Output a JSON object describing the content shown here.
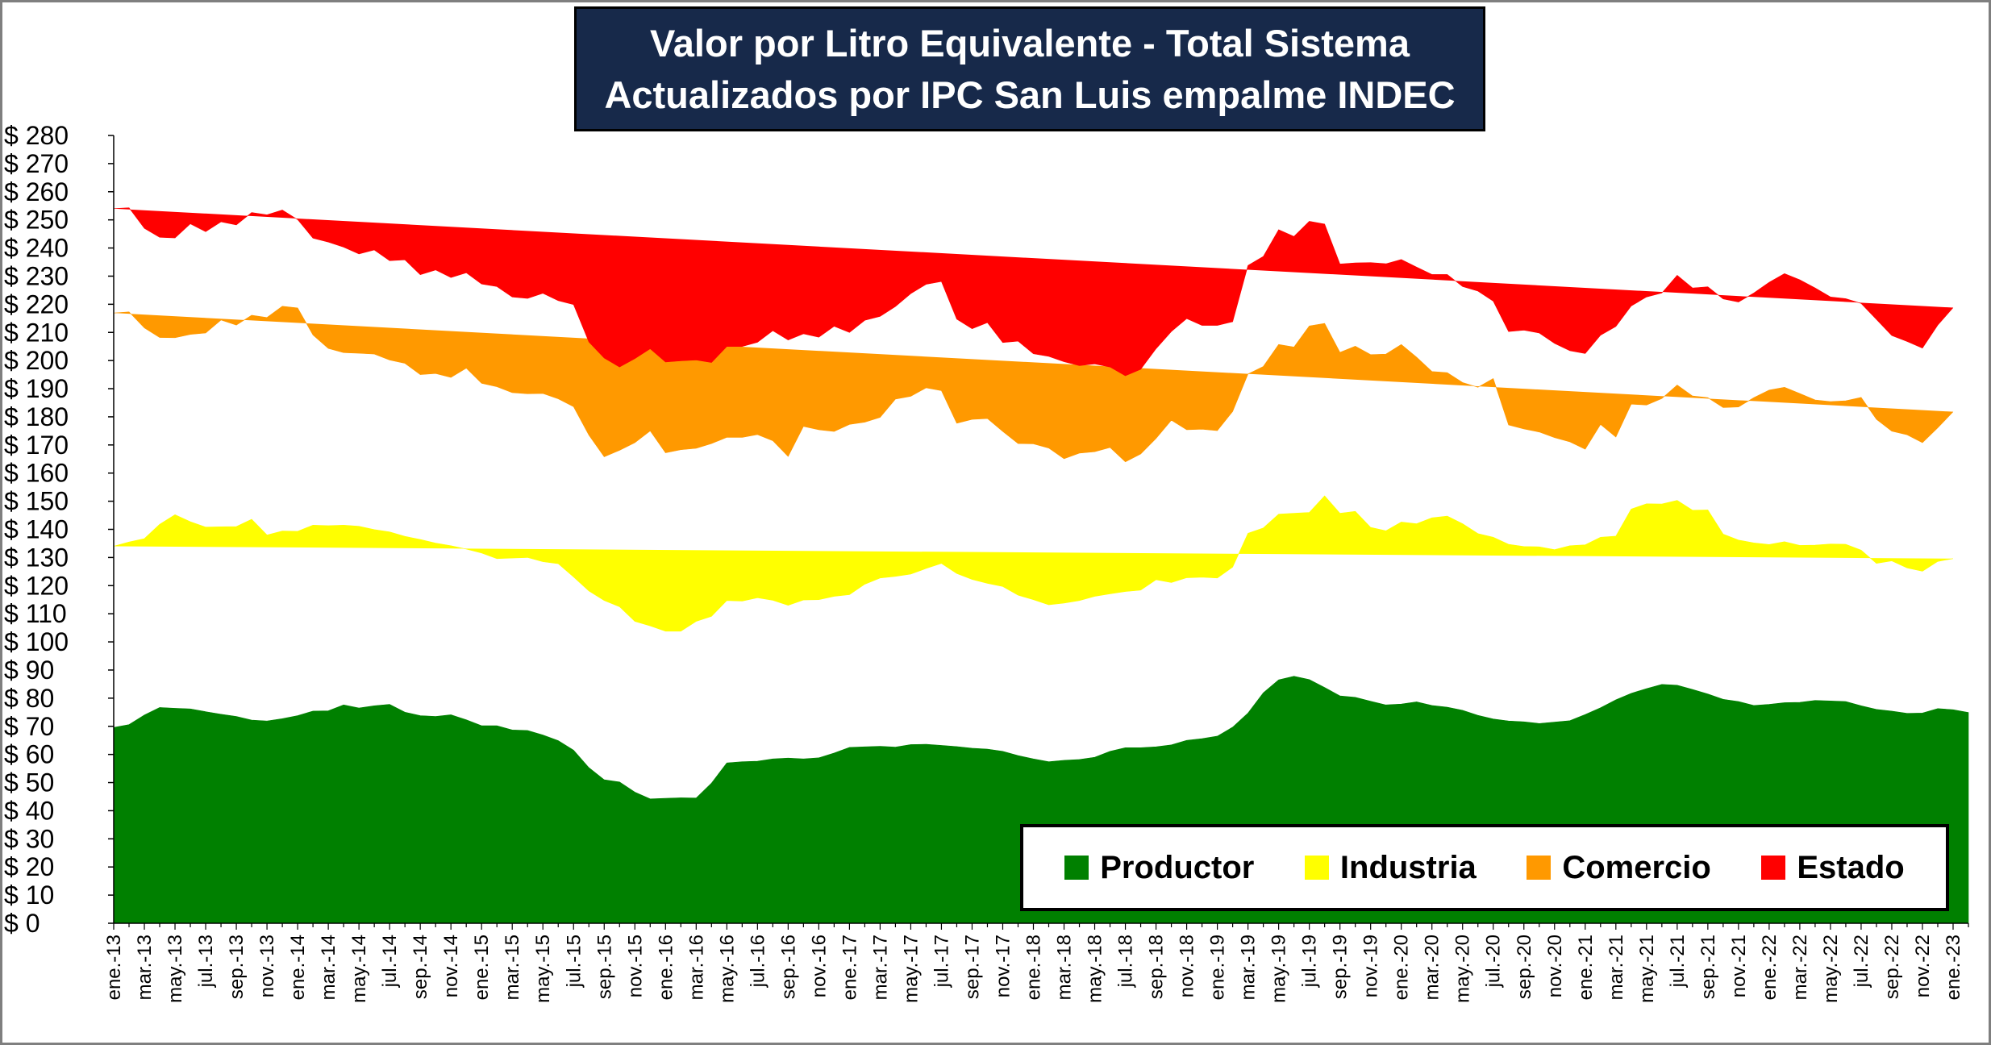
{
  "chart_data": {
    "type": "area",
    "stacked": true,
    "title": "Valor por Litro Equivalente - Total Sistema",
    "subtitle": "Actualizados por IPC San Luis empalme INDEC",
    "ylim": [
      0,
      280
    ],
    "ytick_step": 10,
    "ytick_prefix": "$ ",
    "grid": false,
    "legend_position": "bottom-right",
    "start_month": "2013-01",
    "x_tick_labels": [
      "ene.-13",
      "mar.-13",
      "may.-13",
      "jul.-13",
      "sep.-13",
      "nov.-13",
      "ene.-14",
      "mar.-14",
      "may.-14",
      "jul.-14",
      "sep.-14",
      "nov.-14",
      "ene.-15",
      "mar.-15",
      "may.-15",
      "jul.-15",
      "sep.-15",
      "nov.-15",
      "ene.-16",
      "mar.-16",
      "may.-16",
      "jul.-16",
      "sep.-16",
      "nov.-16",
      "ene.-17",
      "mar.-17",
      "may.-17",
      "jul.-17",
      "sep.-17",
      "nov.-17",
      "ene.-18",
      "mar.-18",
      "may.-18",
      "jul.-18",
      "sep.-18",
      "nov.-18",
      "ene.-19",
      "mar.-19",
      "may.-19",
      "jul.-19",
      "sep.-19",
      "nov.-19",
      "ene.-20",
      "mar.-20",
      "may.-20",
      "jul.-20",
      "sep.-20",
      "nov.-20",
      "ene.-21",
      "mar.-21",
      "may.-21",
      "jul.-21",
      "sep.-21",
      "nov.-21",
      "ene.-22",
      "mar.-22",
      "may.-22",
      "jul.-22",
      "sep.-22",
      "nov.-22",
      "ene.-23"
    ],
    "series": [
      {
        "name": "Productor",
        "color": "#008000",
        "values": [
          69.6,
          70.6,
          74.0,
          76.7,
          76.4,
          76.2,
          75.2,
          74.3,
          73.5,
          72.2,
          71.9,
          72.7,
          73.8,
          75.4,
          75.5,
          77.6,
          76.5,
          77.3,
          77.8,
          75.0,
          73.8,
          73.5,
          74.1,
          72.3,
          70.2,
          70.2,
          68.7,
          68.5,
          66.9,
          64.9,
          61.5,
          55.3,
          51.0,
          50.2,
          46.6,
          44.2,
          44.4,
          44.6,
          44.5,
          49.8,
          57.0,
          57.4,
          57.6,
          58.4,
          58.7,
          58.4,
          58.8,
          60.5,
          62.5,
          62.7,
          62.9,
          62.6,
          63.5,
          63.6,
          63.2,
          62.8,
          62.2,
          61.9,
          61.1,
          59.6,
          58.4,
          57.4,
          57.9,
          58.2,
          59.0,
          61.1,
          62.4,
          62.4,
          62.7,
          63.4,
          65.0,
          65.6,
          66.5,
          69.7,
          74.7,
          81.9,
          86.5,
          87.8,
          86.6,
          83.8,
          80.8,
          80.3,
          78.9,
          77.6,
          77.9,
          78.7,
          77.4,
          76.8,
          75.7,
          73.9,
          72.6,
          71.9,
          71.6,
          71.0,
          71.5,
          72.0,
          74.2,
          76.6,
          79.4,
          81.7,
          83.4,
          84.9,
          84.6,
          83.1,
          81.5,
          79.6,
          78.8,
          77.4,
          77.8,
          78.4,
          78.5,
          79.2,
          79.0,
          78.8,
          77.3,
          76.0,
          75.4,
          74.6,
          74.7,
          76.3,
          75.9,
          74.9
        ]
      },
      {
        "name": "Industria",
        "color": "#ffff00",
        "values": [
          64.4,
          64.9,
          62.7,
          65.1,
          68.8,
          66.5,
          65.6,
          66.6,
          67.5,
          71.4,
          66.1,
          66.7,
          65.5,
          66.1,
          65.8,
          63.9,
          64.6,
          62.6,
          61.3,
          62.5,
          62.6,
          61.6,
          60.1,
          60.7,
          61.4,
          59.4,
          61.1,
          61.5,
          61.6,
          62.9,
          61.6,
          62.8,
          63.7,
          62.3,
          60.7,
          61.5,
          59.4,
          59.2,
          62.8,
          59.3,
          57.7,
          57.1,
          58.1,
          56.4,
          54.3,
          56.5,
          56.2,
          55.7,
          54.3,
          57.8,
          59.8,
          60.7,
          60.6,
          62.5,
          64.7,
          61.5,
          60.0,
          58.9,
          58.6,
          57.0,
          56.6,
          55.8,
          55.9,
          56.5,
          57.2,
          56.0,
          55.5,
          56.0,
          59.4,
          57.7,
          57.8,
          57.4,
          56.2,
          56.9,
          63.9,
          58.6,
          58.9,
          57.9,
          59.4,
          68.1,
          64.9,
          66.1,
          61.8,
          61.9,
          64.7,
          63.3,
          66.7,
          67.9,
          66.3,
          64.6,
          64.6,
          62.8,
          62.3,
          62.8,
          61.3,
          62.2,
          60.3,
          60.6,
          58.2,
          65.5,
          65.7,
          64.1,
          65.7,
          63.7,
          65.4,
          58.7,
          57.4,
          57.8,
          56.8,
          57.2,
          55.8,
          55.2,
          55.8,
          55.9,
          55.3,
          51.9,
          53.4,
          51.7,
          50.4,
          52.3,
          53.7
        ]
      },
      {
        "name": "Comercio",
        "color": "#ff9900",
        "values": [
          82.9,
          81.8,
          74.9,
          66.4,
          62.9,
          66.6,
          69.0,
          73.5,
          71.6,
          72.5,
          77.3,
          79.9,
          79.4,
          67.6,
          63.0,
          61.3,
          61.5,
          62.4,
          61.1,
          61.5,
          58.6,
          60.3,
          59.8,
          64.3,
          60.3,
          61.1,
          58.8,
          58.2,
          59.8,
          58.6,
          60.5,
          55.4,
          51.1,
          55.6,
          63.5,
          69.3,
          63.4,
          64.5,
          61.5,
          61.4,
          58.0,
          58.2,
          58.0,
          56.7,
          52.9,
          61.7,
          60.4,
          58.6,
          60.5,
          57.6,
          57.1,
          63.0,
          63.2,
          64.2,
          61.4,
          53.4,
          56.9,
          58.6,
          55.1,
          53.9,
          55.4,
          55.7,
          51.3,
          52.4,
          51.4,
          52.0,
          46.1,
          48.4,
          50.2,
          57.7,
          52.6,
          52.6,
          52.4,
          55.3,
          56.6,
          57.4,
          60.3,
          59.1,
          66.3,
          61.3,
          57.2,
          58.7,
          61.4,
          62.8,
          63.1,
          59.2,
          52.0,
          51.0,
          50.2,
          52.0,
          56.4,
          42.4,
          41.8,
          40.8,
          39.8,
          36.9,
          34.0,
          40.1,
          35.2,
          37.3,
          35.1,
          37.5,
          41.0,
          40.6,
          39.9,
          45.0,
          47.3,
          51.6,
          54.9,
          54.9,
          54.0,
          51.6,
          50.6,
          51.0,
          54.3,
          51.2,
          46.1,
          47.3,
          45.7,
          47.5,
          52.2,
          52.8
        ]
      },
      {
        "name": "Estado",
        "color": "#ff0000",
        "values": [
          37.1,
          37.0,
          35.4,
          35.6,
          35.5,
          39.3,
          36.0,
          34.9,
          35.6,
          36.5,
          36.5,
          34.2,
          31.4,
          34.4,
          37.8,
          37.5,
          35.3,
          37.0,
          35.3,
          36.8,
          35.5,
          36.8,
          35.5,
          33.9,
          35.3,
          35.6,
          34.0,
          33.9,
          35.6,
          34.9,
          36.3,
          33.1,
          35.1,
          29.6,
          29.9,
          29.2,
          32.3,
          31.6,
          31.4,
          28.8,
          32.3,
          32.3,
          32.8,
          39.1,
          41.4,
          32.9,
          32.9,
          37.4,
          32.7,
          36.2,
          35.9,
          32.9,
          36.5,
          36.8,
          38.8,
          37.0,
          32.2,
          34.1,
          31.6,
          36.4,
          32.0,
          32.6,
          34.5,
          31.1,
          31.2,
          28.6,
          30.6,
          30.1,
          31.9,
          31.5,
          39.5,
          36.9,
          37.4,
          31.9,
          38.6,
          39.1,
          40.8,
          39.3,
          37.2,
          35.3,
          31.4,
          29.6,
          32.7,
          32.1,
          30.2,
          32.0,
          34.5,
          34.9,
          34.1,
          34.2,
          27.5,
          33.2,
          35.1,
          35.2,
          33.5,
          32.4,
          34.0,
          31.7,
          39.3,
          34.9,
          38.4,
          37.5,
          39.0,
          38.4,
          39.4,
          38.6,
          37.3,
          37.2,
          38.3,
          40.4,
          40.4,
          39.8,
          37.2,
          36.3,
          33.4,
          35.5,
          34.0,
          33.2,
          33.6,
          36.5,
          37.0
        ]
      }
    ]
  }
}
